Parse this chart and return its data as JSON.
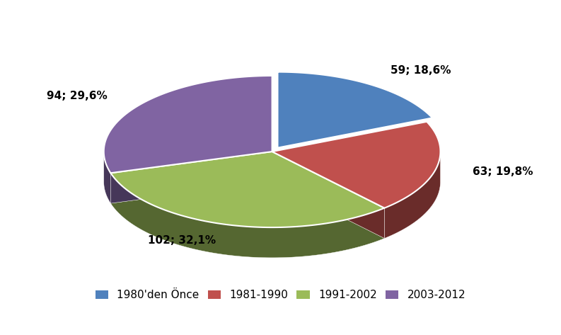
{
  "labels": [
    "1980'den Önce",
    "1981-1990",
    "1991-2002",
    "2003-2012"
  ],
  "values": [
    59,
    63,
    102,
    94
  ],
  "percentages": [
    "18,6%",
    "19,8%",
    "32,1%",
    "29,6%"
  ],
  "colors": [
    "#4F81BD",
    "#C0504D",
    "#9BBB59",
    "#8064A2"
  ],
  "explode": [
    0.06,
    0.0,
    0.0,
    0.0
  ],
  "startangle": 90,
  "label_fontsize": 11,
  "legend_fontsize": 11,
  "background_color": "#FFFFFF",
  "depth": 0.18,
  "ratio": 0.45
}
